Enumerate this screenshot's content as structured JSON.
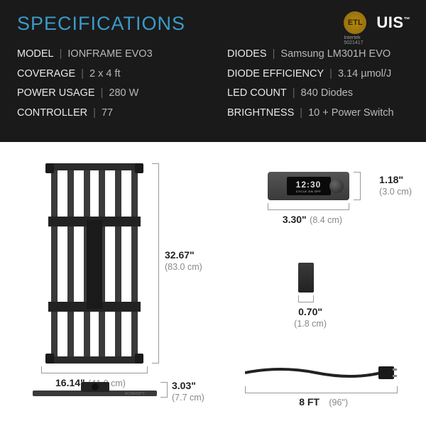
{
  "header": {
    "title": "SPECIFICATIONS",
    "left_specs": [
      {
        "label": "MODEL",
        "value": "IONFRAME EVO3"
      },
      {
        "label": "COVERAGE",
        "value": "2 x 4 ft"
      },
      {
        "label": "POWER USAGE",
        "value": "280 W"
      },
      {
        "label": "CONTROLLER",
        "value": "77"
      }
    ],
    "right_specs": [
      {
        "label": "DIODES",
        "value": "Samsung LM301H EVO"
      },
      {
        "label": "DIODE EFFICIENCY",
        "value": "3.14 µmol/J"
      },
      {
        "label": "LED COUNT",
        "value": "840 Diodes"
      },
      {
        "label": "BRIGHTNESS",
        "value": "10 + Power Switch"
      }
    ],
    "logos": {
      "etl": "ETL",
      "etl_sub": "Intertek 5021417",
      "uis": "UIS"
    }
  },
  "dimensions": {
    "fixture_height": {
      "in": "32.67\"",
      "cm": "(83.0 cm)"
    },
    "fixture_width": {
      "in": "16.14\"",
      "cm": "(41.0 cm)"
    },
    "fixture_depth": {
      "in": "3.03\"",
      "cm": "(7.7 cm)"
    },
    "controller_h": {
      "in": "1.18\"",
      "cm": "(3.0 cm)"
    },
    "controller_w": {
      "in": "3.30\"",
      "cm": "(8.4 cm)"
    },
    "module_w": {
      "in": "0.70\"",
      "cm": "(1.8 cm)"
    },
    "cable_len": {
      "ft": "8 FT",
      "in": "(96\")"
    }
  },
  "controller_display": "12:30",
  "colors": {
    "bg_header": "#1a1a1a",
    "title_blue": "#3b9ac9",
    "metal_dark": "#2e2e2e",
    "metal_light": "#555",
    "dim_text": "#222",
    "dim_sub": "#888"
  }
}
